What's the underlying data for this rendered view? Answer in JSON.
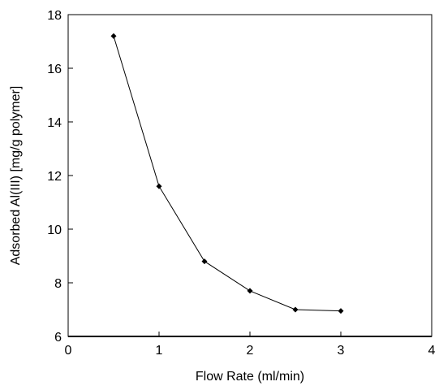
{
  "chart_data": {
    "type": "line",
    "title": "",
    "xlabel": "Flow Rate (ml/min)",
    "ylabel": "Adsorbed Al(III) [mg/g polymer]",
    "xlim": [
      0,
      4
    ],
    "ylim": [
      6,
      18
    ],
    "xticks": [
      0,
      1,
      2,
      3,
      4
    ],
    "yticks": [
      6,
      8,
      10,
      12,
      14,
      16,
      18
    ],
    "grid": false,
    "legend": "none",
    "line_color": "#000000",
    "marker": "diamond",
    "series": [
      {
        "x": [
          0.5,
          1.0,
          1.5,
          2.0,
          2.5,
          3.0
        ],
        "y": [
          17.2,
          11.6,
          8.8,
          7.7,
          7.0,
          6.95
        ]
      }
    ]
  }
}
